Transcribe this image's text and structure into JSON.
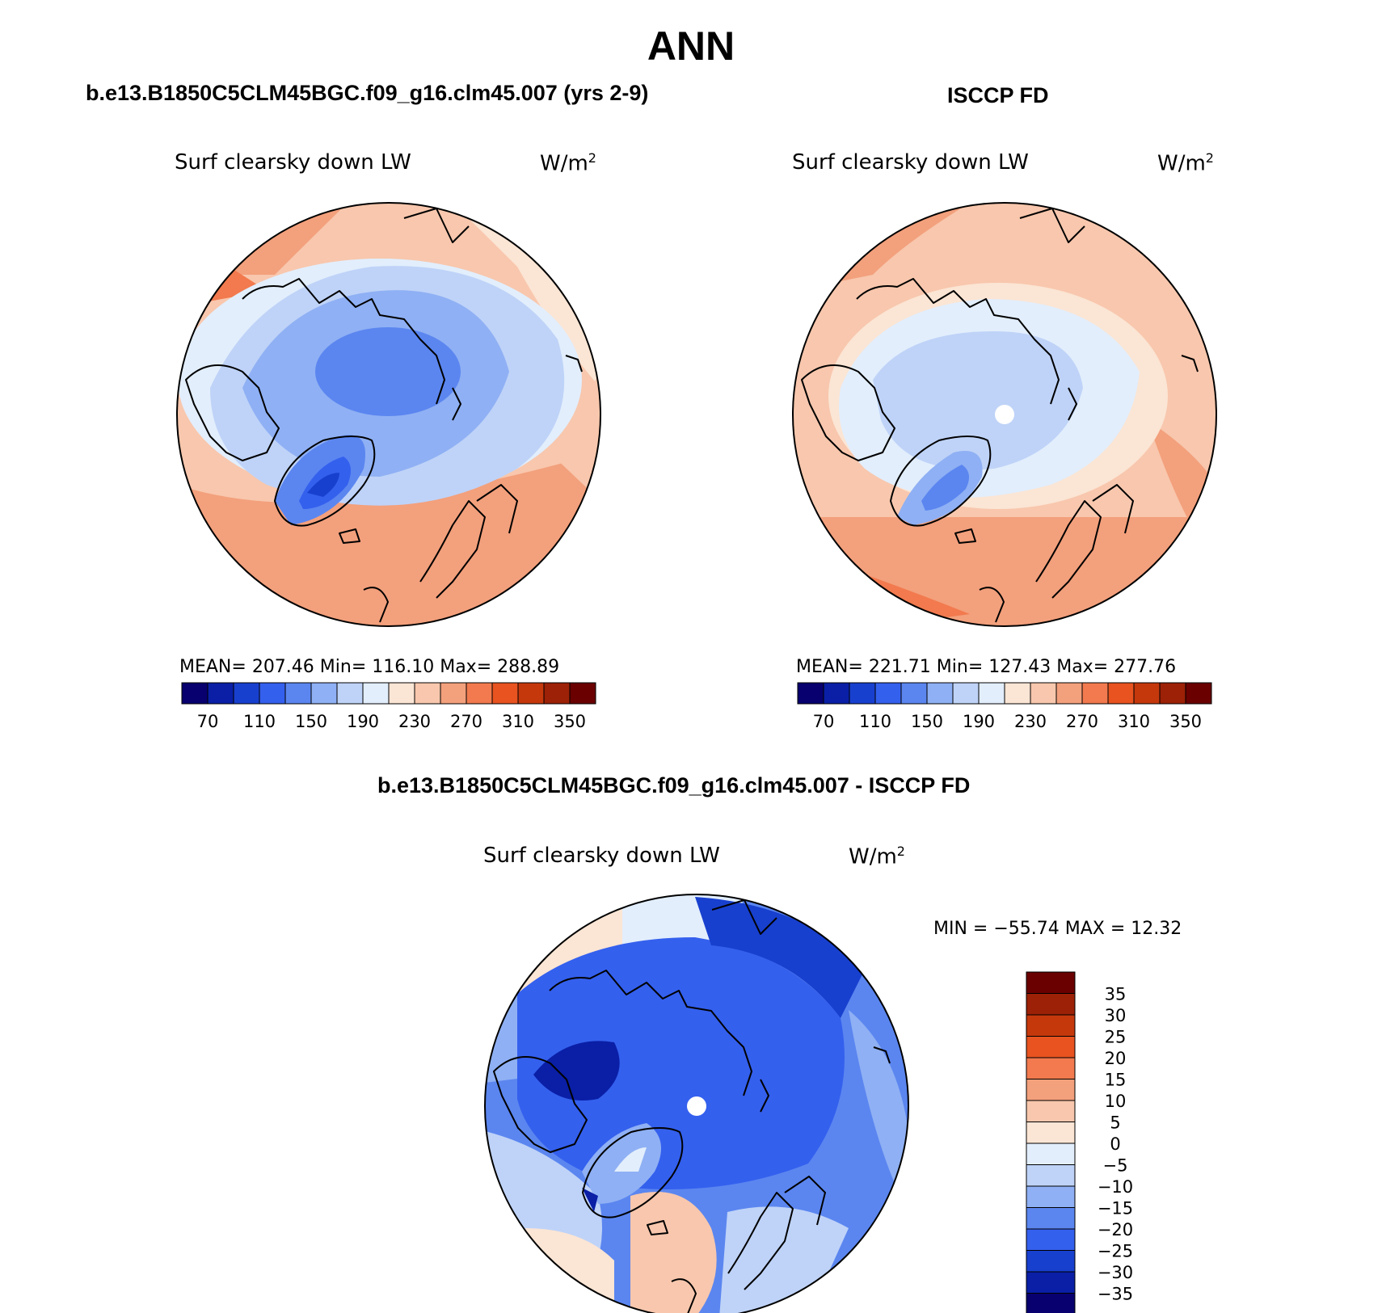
{
  "title": "ANN",
  "panels": [
    {
      "case_title": "b.e13.B1850C5CLM45BGC.f09_g16.clm45.007 (yrs 2-9)",
      "variable": "Surf clearsky down LW",
      "units": "W/m",
      "units_sup": "2",
      "stats": "MEAN= 207.46   Min= 116.10   Max= 288.89",
      "colorbar_labels": [
        "70",
        "110",
        "150",
        "190",
        "230",
        "270",
        "310",
        "350"
      ]
    },
    {
      "case_title": "ISCCP FD",
      "variable": "Surf clearsky down LW",
      "units": "W/m",
      "units_sup": "2",
      "stats": "MEAN= 221.71   Min= 127.43   Max= 277.76",
      "colorbar_labels": [
        "70",
        "110",
        "150",
        "190",
        "230",
        "270",
        "310",
        "350"
      ]
    }
  ],
  "diff_panel": {
    "case_title": "b.e13.B1850C5CLM45BGC.f09_g16.clm45.007 - ISCCP FD",
    "variable": "Surf clearsky down LW",
    "units": "W/m",
    "units_sup": "2",
    "minmax": "MIN = −55.74 MAX =   12.32",
    "colorbar_labels": [
      "35",
      "30",
      "25",
      "20",
      "15",
      "10",
      "5",
      "0",
      "−5",
      "−10",
      "−15",
      "−20",
      "−25",
      "−30",
      "−35"
    ]
  },
  "palettes": {
    "abs": [
      "#08006e",
      "#0a1fa6",
      "#1840cf",
      "#3460ee",
      "#5b86f0",
      "#8fb0f4",
      "#bfd3f8",
      "#e2eefc",
      "#fbe5d4",
      "#f8c7ad",
      "#f3a07c",
      "#f27a4e",
      "#e8531f",
      "#c5380c",
      "#9c2106",
      "#6a0000"
    ],
    "diff": [
      "#6a0000",
      "#9c2106",
      "#c5380c",
      "#e8531f",
      "#f27a4e",
      "#f3a07c",
      "#f8c7ad",
      "#fbe5d4",
      "#e2eefc",
      "#bfd3f8",
      "#8fb0f4",
      "#5b86f0",
      "#3460ee",
      "#1840cf",
      "#0a1fa6",
      "#08006e"
    ]
  }
}
